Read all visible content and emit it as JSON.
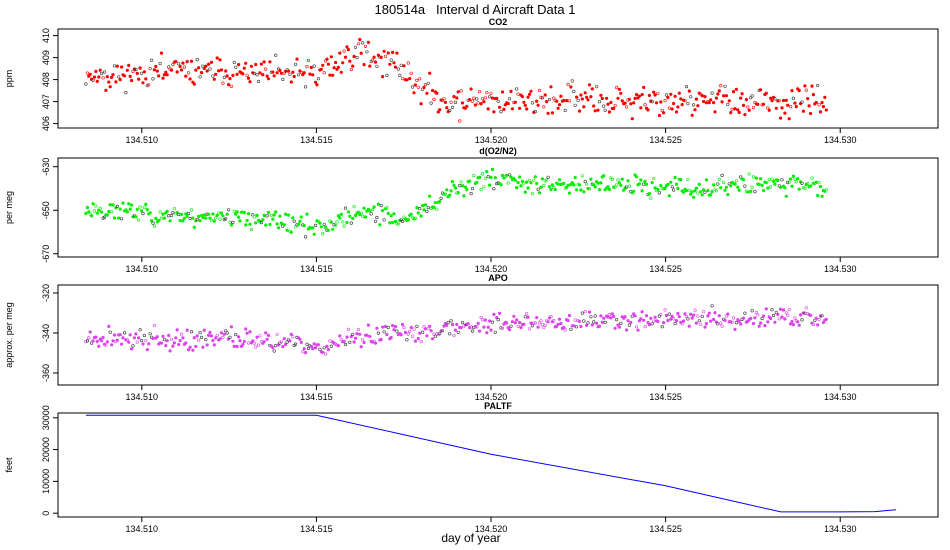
{
  "title": "180514a   Interval d Aircraft Data 1",
  "chart_data": [
    {
      "type": "scatter",
      "title": "CO2",
      "ylabel": "ppm",
      "color": "#ff0000",
      "xlim": [
        134.5076,
        134.5328
      ],
      "ylim": [
        405.8,
        410.3
      ],
      "yticks": [
        406,
        407,
        408,
        409,
        410
      ],
      "xticks": [
        134.51,
        134.515,
        134.52,
        134.525,
        134.53
      ],
      "xticklabels": [
        "134.510",
        "134.515",
        "134.520",
        "134.525",
        "134.530"
      ],
      "x_range": [
        134.5084,
        134.5296
      ],
      "trend": [
        [
          134.5084,
          408.2
        ],
        [
          134.51,
          408.3
        ],
        [
          134.5115,
          408.4
        ],
        [
          134.513,
          408.3
        ],
        [
          134.515,
          408.2
        ],
        [
          134.5162,
          409.3
        ],
        [
          134.5172,
          408.8
        ],
        [
          134.518,
          407.6
        ],
        [
          134.519,
          406.8
        ],
        [
          134.52,
          407.0
        ],
        [
          134.522,
          407.1
        ],
        [
          134.524,
          407.0
        ],
        [
          134.526,
          407.1
        ],
        [
          134.528,
          406.9
        ],
        [
          134.5296,
          407.0
        ]
      ],
      "noise": 0.45,
      "seed": 11
    },
    {
      "type": "scatter",
      "title": "d(O2/N2)",
      "ylabel": "per meg",
      "color": "#00ee00",
      "xlim": [
        134.5076,
        134.5328
      ],
      "ylim": [
        -671.5,
        -626
      ],
      "yticks": [
        -630,
        -650,
        -670
      ],
      "xticks": [
        134.51,
        134.515,
        134.52,
        134.525,
        134.53
      ],
      "xticklabels": [
        "134.510",
        "134.515",
        "134.520",
        "134.525",
        "134.530"
      ],
      "x_range": [
        134.5084,
        134.5296
      ],
      "trend": [
        [
          134.5084,
          -650
        ],
        [
          134.51,
          -651
        ],
        [
          134.5115,
          -653
        ],
        [
          134.513,
          -653
        ],
        [
          134.515,
          -658
        ],
        [
          134.5165,
          -651
        ],
        [
          134.5175,
          -655
        ],
        [
          134.5183,
          -648
        ],
        [
          134.519,
          -640
        ],
        [
          134.52,
          -636
        ],
        [
          134.522,
          -638
        ],
        [
          134.524,
          -639
        ],
        [
          134.526,
          -640
        ],
        [
          134.528,
          -637
        ],
        [
          134.5296,
          -640
        ]
      ],
      "noise": 3.2,
      "seed": 23
    },
    {
      "type": "scatter",
      "title": "APO",
      "ylabel": "approx. per meg",
      "color": "#dd44ee",
      "xlim": [
        134.5076,
        134.5328
      ],
      "ylim": [
        -366,
        -316
      ],
      "yticks": [
        -320,
        -340,
        -360
      ],
      "xticks": [
        134.51,
        134.515,
        134.52,
        134.525,
        134.53
      ],
      "xticklabels": [
        "134.510",
        "134.515",
        "134.520",
        "134.525",
        "134.530"
      ],
      "x_range": [
        134.5084,
        134.5296
      ],
      "trend": [
        [
          134.5084,
          -342
        ],
        [
          134.51,
          -343
        ],
        [
          134.5115,
          -344
        ],
        [
          134.513,
          -342
        ],
        [
          134.515,
          -348
        ],
        [
          134.5165,
          -341
        ],
        [
          134.518,
          -340
        ],
        [
          134.519,
          -337
        ],
        [
          134.52,
          -335
        ],
        [
          134.522,
          -334
        ],
        [
          134.524,
          -334
        ],
        [
          134.526,
          -333
        ],
        [
          134.528,
          -332
        ],
        [
          134.5296,
          -333
        ]
      ],
      "noise": 3.6,
      "seed": 37
    },
    {
      "type": "line",
      "title": "PALTF",
      "ylabel": "feet",
      "xlabel": "day of year",
      "color": "#0000ff",
      "xlim": [
        134.5076,
        134.5328
      ],
      "ylim": [
        -1200,
        31500
      ],
      "yticks": [
        0,
        10000,
        20000,
        30000
      ],
      "xticks": [
        134.51,
        134.515,
        134.52,
        134.525,
        134.53
      ],
      "xticklabels": [
        "134.510",
        "134.515",
        "134.520",
        "134.525",
        "134.530"
      ],
      "x": [
        134.5084,
        134.515,
        134.52,
        134.525,
        134.5283,
        134.53,
        134.531,
        134.5316
      ],
      "y": [
        30800,
        30800,
        18500,
        8600,
        400,
        400,
        500,
        1100
      ]
    }
  ]
}
